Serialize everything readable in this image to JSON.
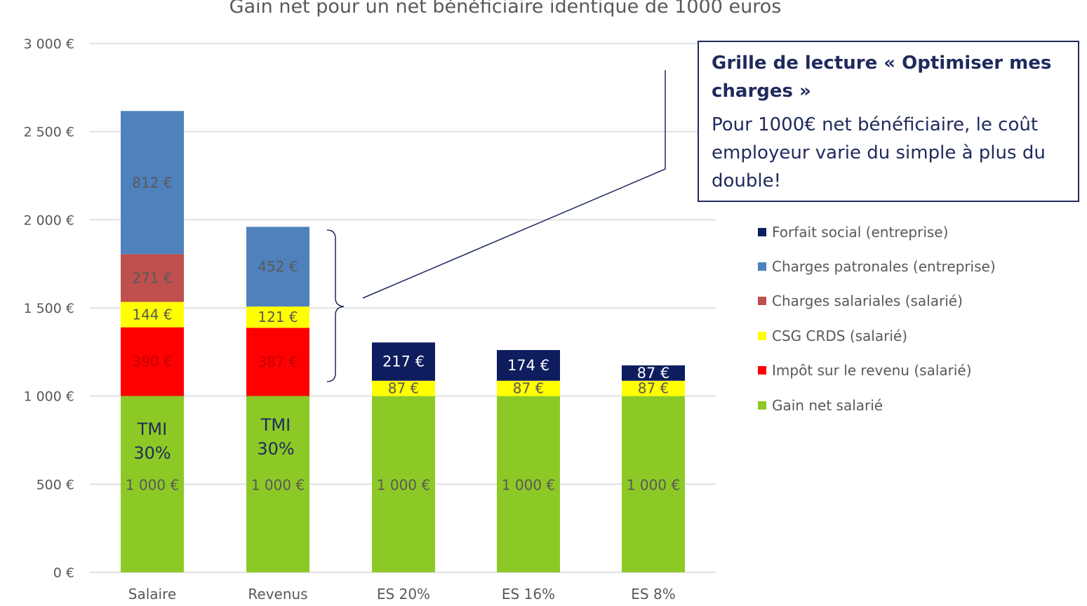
{
  "chart_data": {
    "type": "bar",
    "stacked": true,
    "title": "Gain net pour un net bénéficiaire identique de 1000 euros",
    "categories": [
      "Salaire",
      "Revenus",
      "ES 20%",
      "ES 16%",
      "ES 8%"
    ],
    "ylim": [
      0,
      3000
    ],
    "yticks": [
      0,
      500,
      1000,
      1500,
      2000,
      2500,
      3000
    ],
    "ytick_labels": [
      "0 €",
      "500 €",
      "1 000 €",
      "1 500 €",
      "2 000 €",
      "2 500 €",
      "3 000 €"
    ],
    "grid": true,
    "legend_position": "right",
    "series": [
      {
        "name": "Gain net salarié",
        "color": "#8dc926",
        "values": [
          1000,
          1000,
          1000,
          1000,
          1000
        ],
        "labels": [
          "1 000 €",
          "1 000 €",
          "1 000 €",
          "1 000 €",
          "1 000 €"
        ],
        "label_color": "#595959"
      },
      {
        "name": "Impôt sur le revenu (salarié)",
        "color": "#ff0000",
        "values": [
          390,
          387,
          0,
          0,
          0
        ],
        "labels": [
          "390 €",
          "387 €",
          "",
          "",
          ""
        ],
        "label_color": "#c00000"
      },
      {
        "name": "CSG CRDS (salarié)",
        "color": "#ffff00",
        "values": [
          144,
          121,
          87,
          87,
          87
        ],
        "labels": [
          "144 €",
          "121 €",
          "87 €",
          "87 €",
          "87 €"
        ],
        "label_color": "#595959"
      },
      {
        "name": "Charges salariales (salarié)",
        "color": "#c0504d",
        "values": [
          271,
          0,
          0,
          0,
          0
        ],
        "labels": [
          "271 €",
          "",
          "",
          "",
          ""
        ],
        "label_color": "#595959"
      },
      {
        "name": "Charges patronales (entreprise)",
        "color": "#4f81bd",
        "values": [
          812,
          452,
          0,
          0,
          0
        ],
        "labels": [
          "812 €",
          "452 €",
          "",
          "",
          ""
        ],
        "label_color": "#595959"
      },
      {
        "name": "Forfait social (entreprise)",
        "color": "#0d1d5e",
        "values": [
          0,
          0,
          217,
          174,
          87
        ],
        "labels": [
          "",
          "",
          "217 €",
          "174 €",
          "87 €"
        ],
        "label_color": "#ffffff"
      }
    ],
    "annotations": [
      {
        "category": "Salaire",
        "lines": [
          "TMI",
          "30%"
        ],
        "color": "#1f2a5c"
      },
      {
        "category": "Revenus",
        "lines": [
          "TMI",
          "30%"
        ],
        "color": "#1f2a5c"
      }
    ]
  },
  "callout": {
    "heading": "Grille de lecture « Optimiser mes charges »",
    "body": "Pour 1000€ net bénéficiaire, le coût employeur varie du simple à plus du double!"
  },
  "colors": {
    "grid": "#d9d9d9",
    "axis_text": "#595959",
    "connector": "#1f2a5c"
  }
}
